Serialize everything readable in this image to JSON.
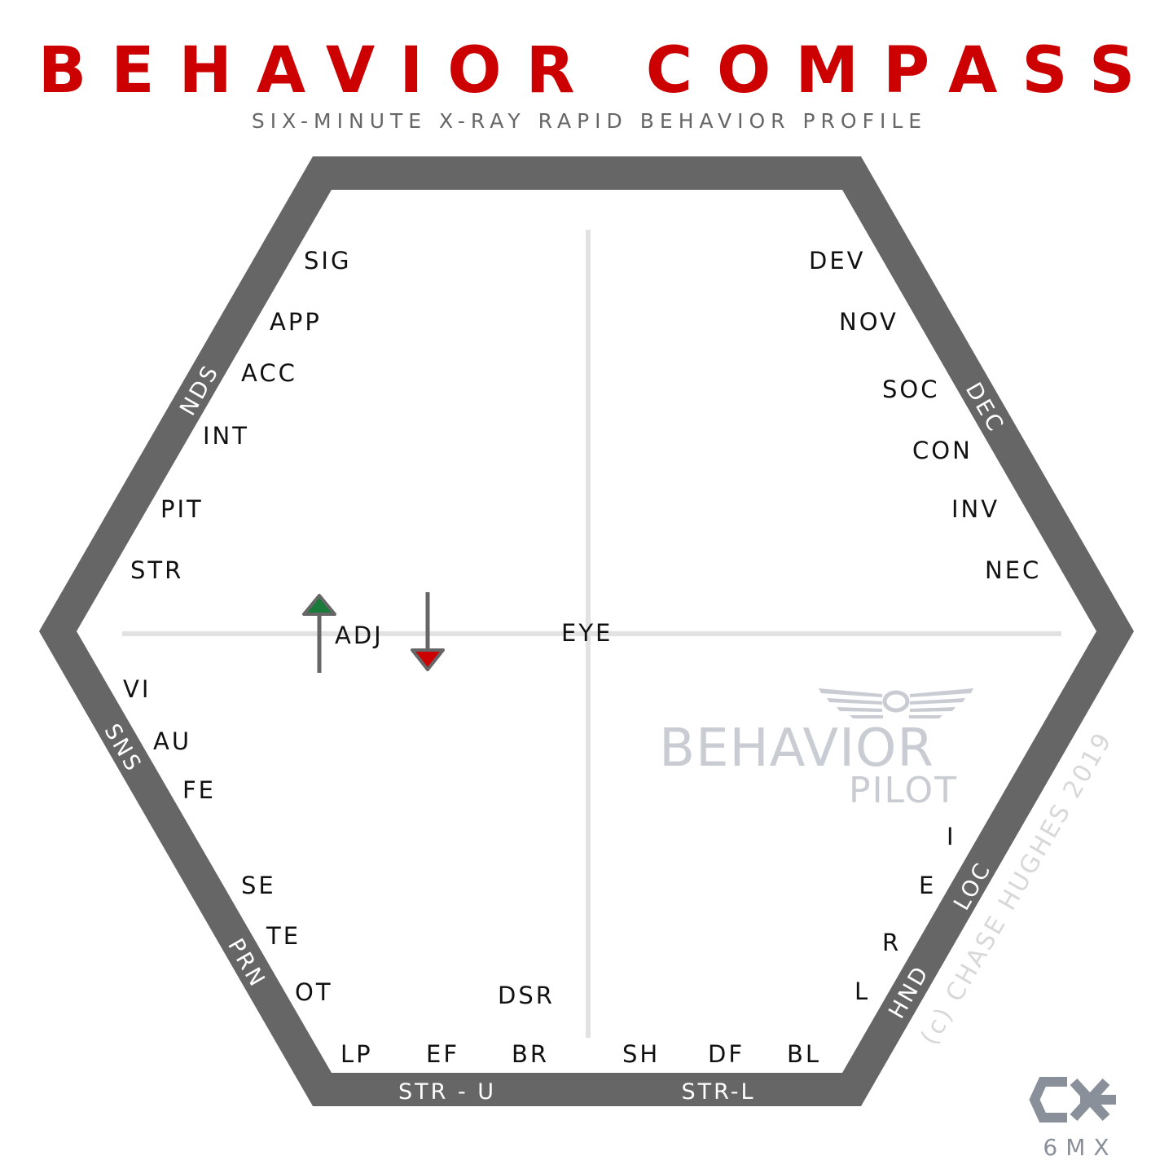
{
  "header": {
    "title": "BEHAVIOR COMPASS",
    "subtitle": "SIX-MINUTE X-RAY RAPID BEHAVIOR PROFILE"
  },
  "edges": {
    "nds": "NDS",
    "dec": "DEC",
    "sns": "SNS",
    "loc": "LOC",
    "prn": "PRN",
    "hnd": "HND",
    "str_u": "STR - U",
    "str_l": "STR-L"
  },
  "labels": {
    "sig": "SIG",
    "app": "APP",
    "acc": "ACC",
    "int": "INT",
    "pit": "PIT",
    "str": "STR",
    "dev": "DEV",
    "nov": "NOV",
    "soc": "SOC",
    "con": "CON",
    "inv": "INV",
    "nec": "NEC",
    "adj": "ADJ",
    "eye": "EYE",
    "vi": "VI",
    "au": "AU",
    "fe": "FE",
    "se": "SE",
    "te": "TE",
    "ot": "OT",
    "dsr": "DSR",
    "lp": "LP",
    "ef": "EF",
    "br": "BR",
    "sh": "SH",
    "df": "DF",
    "bl": "BL",
    "i": "I",
    "e": "E",
    "r": "R",
    "l": "L"
  },
  "watermark": {
    "line1": "BEHAVIOR",
    "line2": "PILOT",
    "copyright": "(c) CHASE HUGHES 2019"
  },
  "brand": {
    "monogram": "CH",
    "code": "6MX"
  },
  "colors": {
    "title": "#cc0000",
    "hexagon_border": "#666666",
    "arrow_up_fill": "#1a7a3a",
    "arrow_down_fill": "#cc0000"
  }
}
